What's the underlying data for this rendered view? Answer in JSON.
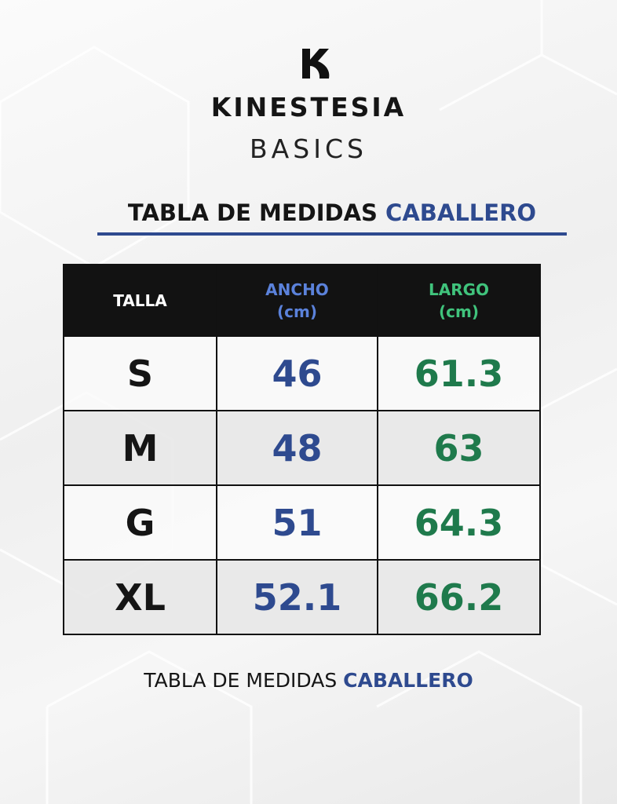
{
  "brand": {
    "name": "KINESTESIA",
    "line": "BASICS"
  },
  "heading": {
    "text": "TABLA DE MEDIDAS",
    "highlight": "CABALLERO"
  },
  "table": {
    "columns": [
      {
        "label": "TALLA"
      },
      {
        "label": "ANCHO",
        "unit": "(cm)"
      },
      {
        "label": "LARGO",
        "unit": "(cm)"
      }
    ],
    "rows": [
      [
        "S",
        46,
        61.3
      ],
      [
        "M",
        48,
        63
      ],
      [
        "G",
        51,
        64.3
      ],
      [
        "XL",
        52.1,
        66.2
      ]
    ]
  },
  "footer": {
    "text": "TABLA DE MEDIDAS",
    "highlight": "CABALLERO"
  }
}
